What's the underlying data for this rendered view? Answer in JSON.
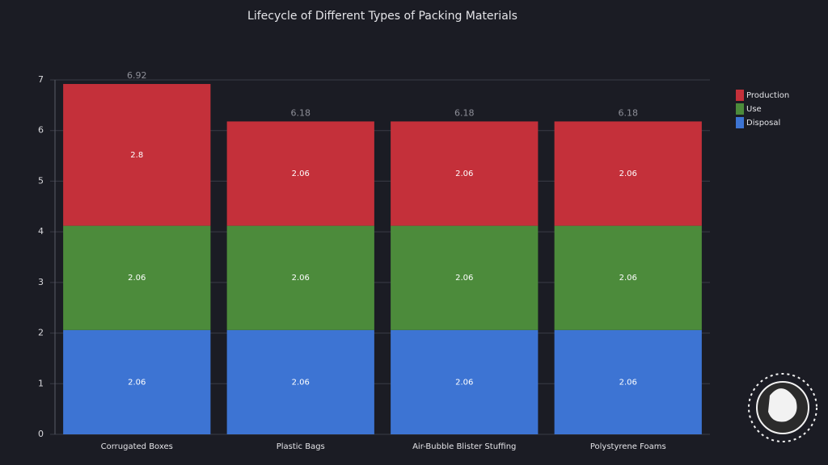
{
  "chart_data": {
    "type": "stacked-bar",
    "title": "Lifecycle of Different Types of Packing Materials",
    "categories": [
      "Corrugated Boxes",
      "Plastic Bags",
      "Air-Bubble Blister Stuffing",
      "Polystyrene Foams"
    ],
    "series": [
      {
        "name": "Production",
        "color": "#c4303a",
        "values": [
          2.8,
          2.06,
          2.06,
          2.06
        ]
      },
      {
        "name": "Use",
        "color": "#4c8b3b",
        "values": [
          2.06,
          2.06,
          2.06,
          2.06
        ]
      },
      {
        "name": "Disposal",
        "color": "#3d74d3",
        "values": [
          2.06,
          2.06,
          2.06,
          2.06
        ]
      }
    ],
    "totals": [
      6.92,
      6.18,
      6.18,
      6.18
    ],
    "ylim": [
      0,
      7
    ],
    "yticks": [
      0,
      1,
      2,
      3,
      4,
      5,
      6,
      7
    ],
    "grid": true,
    "legend": "top-right"
  }
}
